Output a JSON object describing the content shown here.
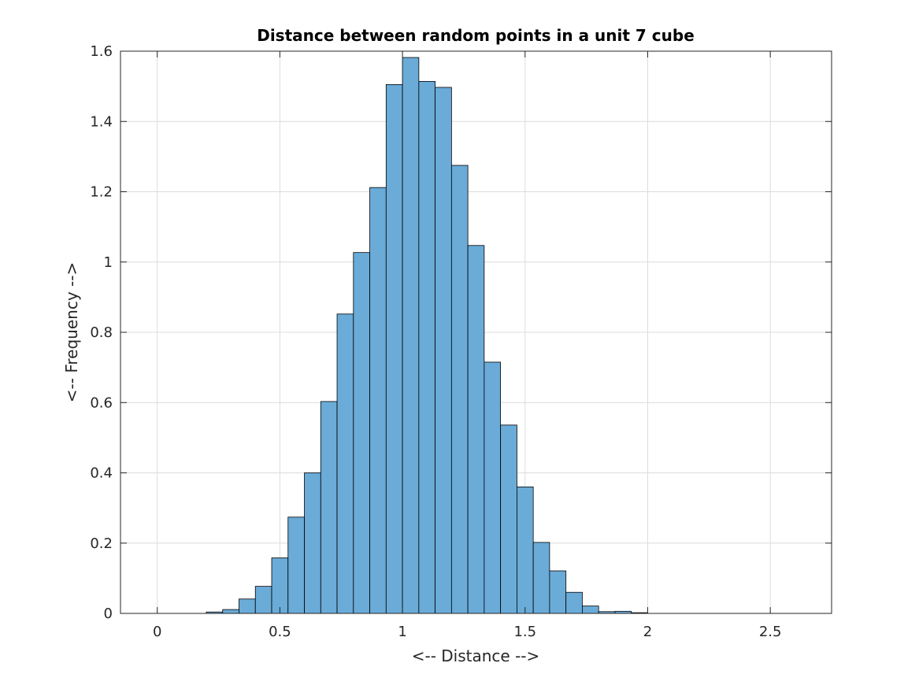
{
  "chart_data": {
    "type": "bar",
    "subtype": "histogram",
    "title": "Distance between random points in a unit 7 cube",
    "xlabel": "<-- Distance -->",
    "ylabel": "<-- Frequency -->",
    "xlim": [
      -0.15,
      2.75
    ],
    "ylim": [
      0,
      1.6
    ],
    "xticks": [
      0,
      0.5,
      1,
      1.5,
      2,
      2.5
    ],
    "xtick_labels": [
      "0",
      "0.5",
      "1",
      "1.5",
      "2",
      "2.5"
    ],
    "yticks": [
      0,
      0.2,
      0.4,
      0.6,
      0.8,
      1,
      1.2,
      1.4,
      1.6
    ],
    "ytick_labels": [
      "0",
      "0.2",
      "0.4",
      "0.6",
      "0.8",
      "1",
      "1.2",
      "1.4",
      "1.6"
    ],
    "grid": true,
    "bin_width": 0.0667,
    "bin_edges": [
      0.2,
      0.2667,
      0.3333,
      0.4,
      0.4667,
      0.5333,
      0.6,
      0.6667,
      0.7333,
      0.8,
      0.8667,
      0.9333,
      1.0,
      1.0667,
      1.1333,
      1.2,
      1.2667,
      1.3333,
      1.4,
      1.4667,
      1.5333,
      1.6,
      1.6667,
      1.7333,
      1.8,
      1.8667,
      1.9333,
      2.0
    ],
    "values": [
      0.004,
      0.011,
      0.041,
      0.077,
      0.158,
      0.274,
      0.4,
      0.603,
      0.852,
      1.027,
      1.212,
      1.505,
      1.582,
      1.514,
      1.497,
      1.275,
      1.047,
      0.715,
      0.536,
      0.36,
      0.202,
      0.121,
      0.06,
      0.021,
      0.005,
      0.006,
      0.002
    ],
    "colors": {
      "bar_fill": "#6aabd8",
      "bar_edge": "#000000",
      "grid": "#dcdcdc",
      "axes": "#262626",
      "background": "#ffffff"
    }
  }
}
